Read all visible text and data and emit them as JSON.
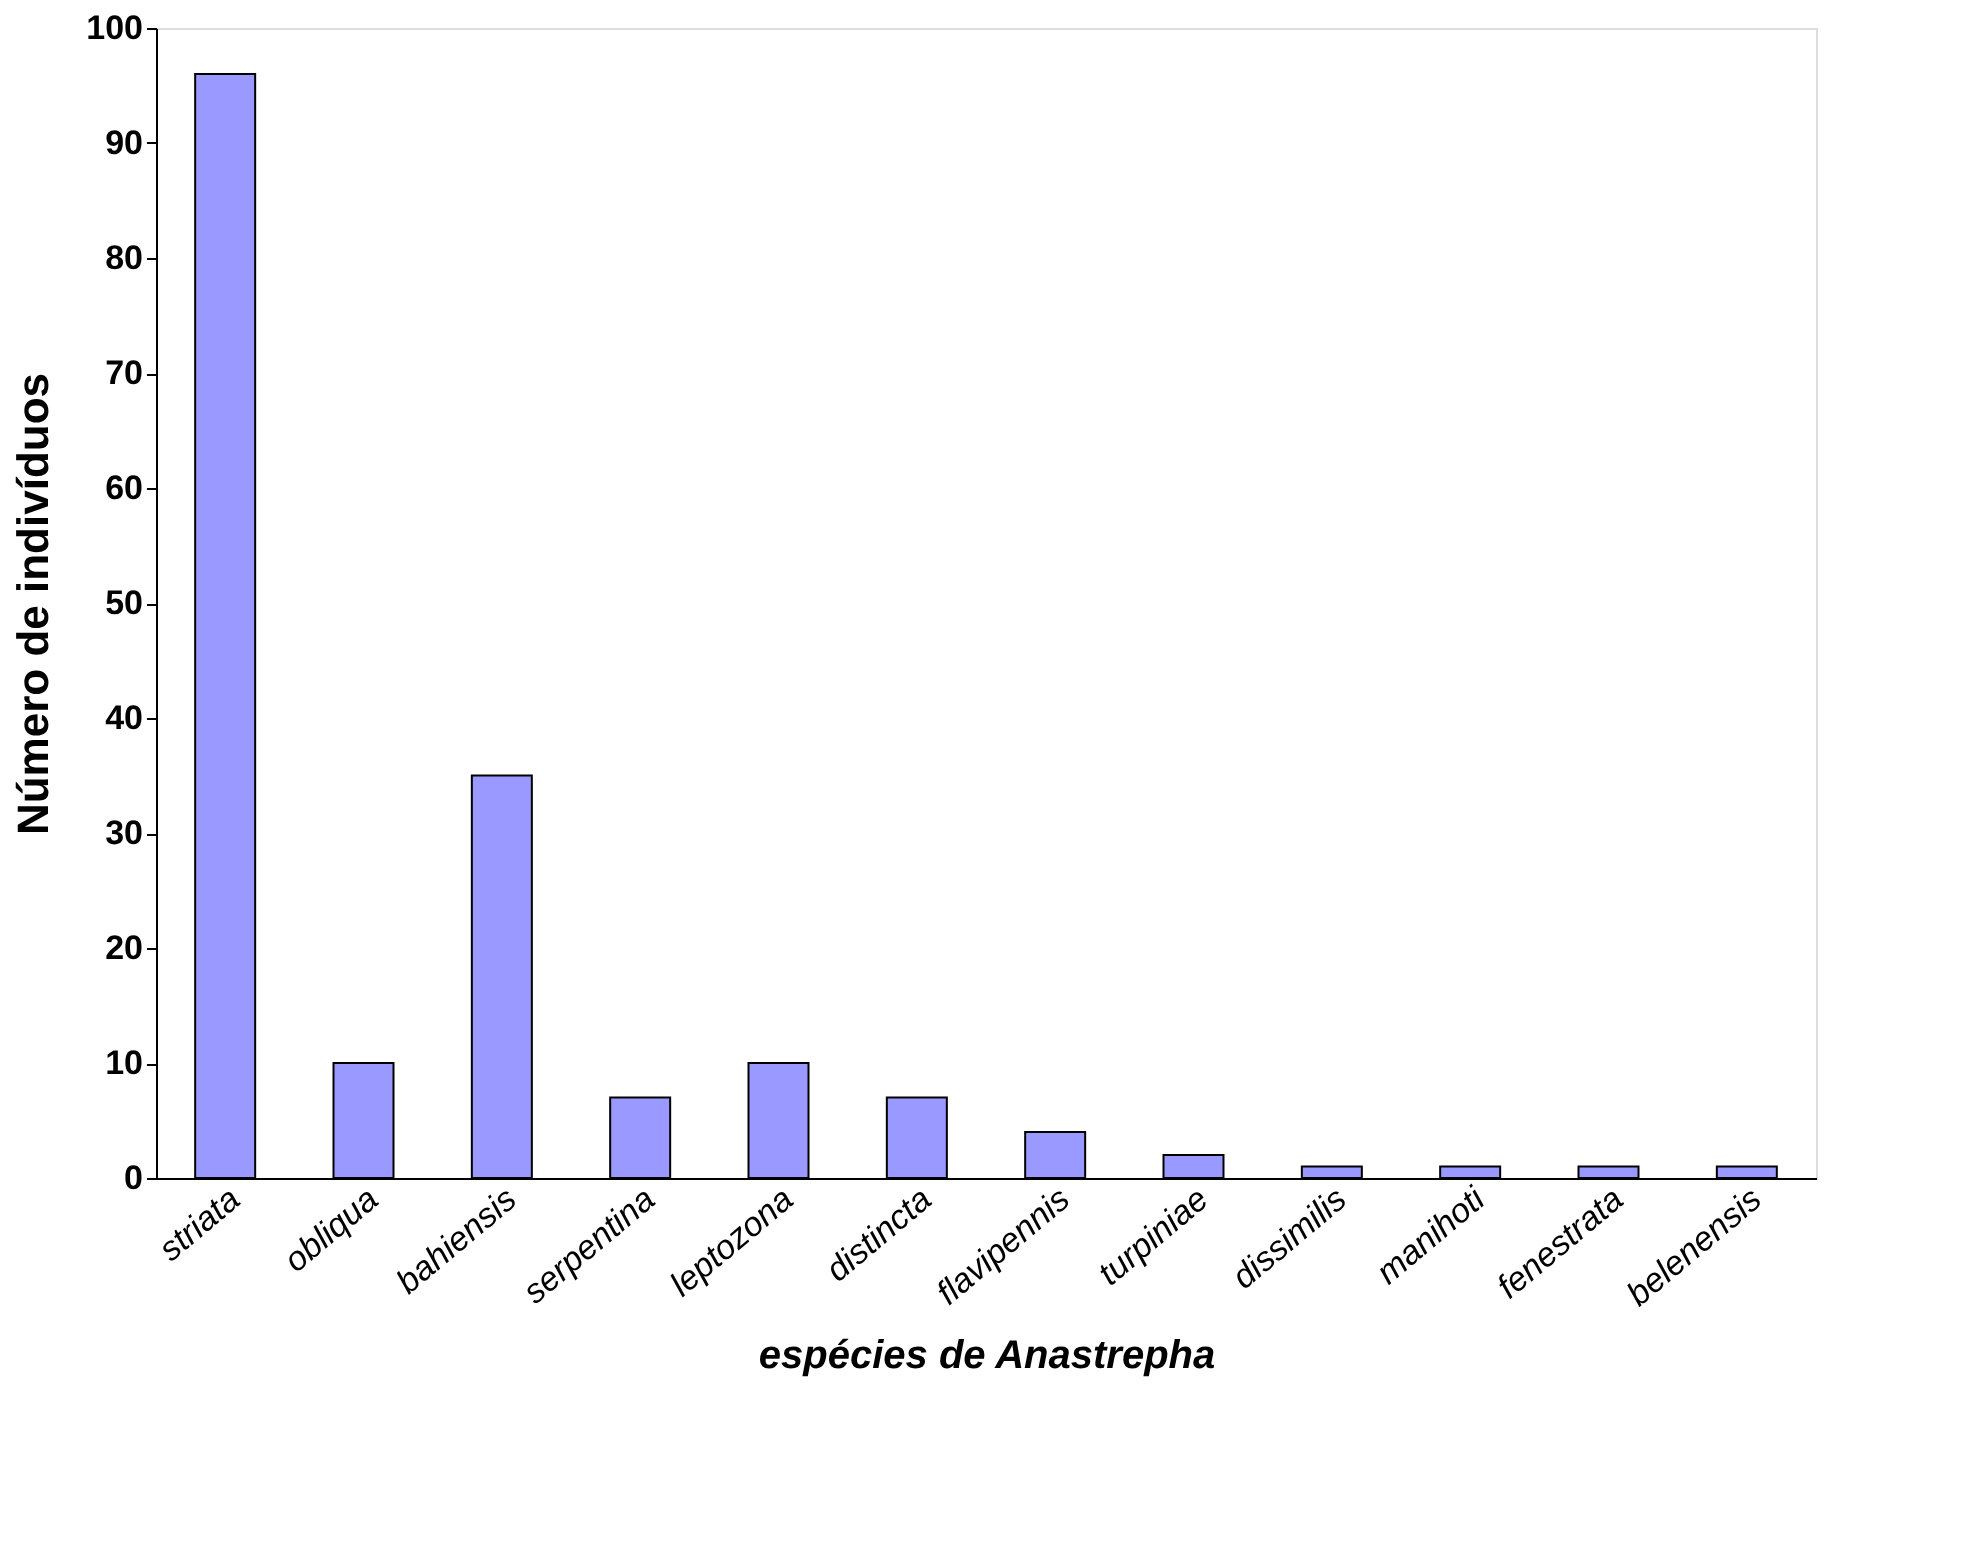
{
  "chart_data": {
    "type": "bar",
    "xlabel": "espécies de Anastrepha",
    "ylabel": "Número de indivíduos",
    "categories": [
      "striata",
      "obliqua",
      "bahiensis",
      "serpentina",
      "leptozona",
      "distincta",
      "flavipennis",
      "turpiniae",
      "dissimilis",
      "manihoti",
      "fenestrata",
      "belenensis"
    ],
    "values": [
      96,
      10,
      35,
      7,
      10,
      7,
      4,
      2,
      1,
      1,
      1,
      1
    ],
    "color": "#9999ff",
    "ylim": [
      0,
      100
    ],
    "yticks": [
      0,
      10,
      20,
      30,
      40,
      50,
      60,
      70,
      80,
      90,
      100
    ],
    "grid": false
  }
}
